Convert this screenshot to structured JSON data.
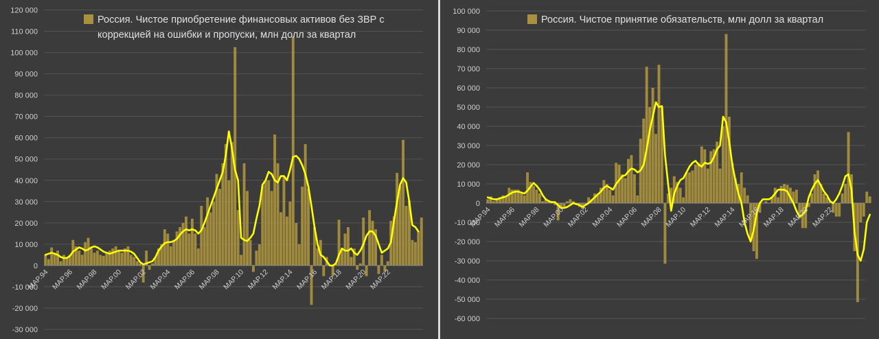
{
  "chart_data": [
    {
      "type": "bar",
      "legend": [
        "Россия. Чистое приобретение финансовых активов без ЗВР с",
        "коррекцией на ошибки и пропуски, млн долл за квартал"
      ],
      "legend_placement": "top",
      "ylim": [
        -30000,
        120000
      ],
      "ystep": 10000,
      "ytick_labels": [
        "-30 000",
        "-20 000",
        "-10 000",
        "0",
        "10 000",
        "20 000",
        "30 000",
        "40 000",
        "50 000",
        "60 000",
        "70 000",
        "80 000",
        "90 000",
        "100 000",
        "110 000",
        "120 000"
      ],
      "xtick_labels": [
        "MAP.94",
        "MAP.96",
        "MAP.98",
        "MAP.00",
        "MAP.02",
        "MAP.04",
        "MAP.06",
        "MAP.08",
        "MAP.10",
        "MAP.12",
        "MAP.14",
        "MAP.16",
        "MAP.18",
        "MAP.20",
        "MAP.22"
      ],
      "x_start_quarter": "1994Q1",
      "grid": true,
      "colors": {
        "bar": "#a8913f",
        "line": "#ffff00",
        "grid": "#555555"
      },
      "values": [
        5000,
        3000,
        8500,
        6000,
        7000,
        2000,
        5000,
        4000,
        5000,
        12000,
        9000,
        7000,
        5000,
        11000,
        13000,
        8000,
        6000,
        7000,
        5000,
        4500,
        6000,
        7000,
        8000,
        9000,
        7000,
        6000,
        8000,
        9000,
        5000,
        4000,
        2000,
        1000,
        -8000,
        7000,
        -2000,
        1000,
        4000,
        8000,
        10000,
        17000,
        15000,
        9000,
        12000,
        16000,
        18000,
        20000,
        23000,
        15000,
        22000,
        15000,
        8000,
        28000,
        18000,
        32000,
        25000,
        30000,
        43000,
        36000,
        48000,
        57000,
        40000,
        58000,
        102500,
        26000,
        5000,
        48000,
        35000,
        12000,
        -3000,
        7000,
        10000,
        37500,
        40000,
        40000,
        35000,
        61500,
        48000,
        25000,
        42000,
        23000,
        30000,
        107500,
        20000,
        10000,
        37000,
        57000,
        36000,
        -18500,
        18000,
        8000,
        12000,
        -5000,
        4000,
        0,
        -5000,
        1000,
        21500,
        8000,
        15000,
        18000,
        4000,
        8000,
        -2000,
        1000,
        22500,
        -5000,
        26000,
        21000,
        17000,
        -4000,
        5000,
        -3000,
        2000,
        21000,
        23000,
        43500,
        37500,
        59000,
        28000,
        30500,
        12000,
        11000,
        16000,
        22500
      ],
      "trend": [
        5000,
        5500,
        6000,
        5500,
        5000,
        4000,
        3500,
        3500,
        4500,
        6500,
        7500,
        8500,
        8000,
        7000,
        7500,
        8500,
        9000,
        8500,
        7500,
        6500,
        6000,
        5500,
        6000,
        6500,
        7000,
        7000,
        7000,
        7000,
        6500,
        5500,
        3500,
        1500,
        500,
        1000,
        1500,
        2000,
        4000,
        7000,
        9000,
        10500,
        11000,
        11000,
        11500,
        12500,
        14500,
        16000,
        17000,
        16500,
        17000,
        16500,
        15000,
        16500,
        20000,
        24000,
        28000,
        32000,
        36000,
        40000,
        44000,
        52000,
        63000,
        55000,
        45000,
        40000,
        13000,
        12000,
        11500,
        13000,
        15000,
        22000,
        28000,
        38000,
        40000,
        44000,
        43000,
        40000,
        39000,
        42000,
        42000,
        40000,
        45000,
        51000,
        51500,
        50000,
        47000,
        43000,
        37000,
        28000,
        18000,
        10000,
        5000,
        4000,
        2000,
        0,
        0,
        1000,
        5000,
        8000,
        7000,
        7000,
        8000,
        6000,
        5000,
        7000,
        10000,
        14000,
        16000,
        16000,
        14000,
        10000,
        6000,
        7000,
        8000,
        11000,
        21000,
        30000,
        38000,
        41000,
        39000,
        30000,
        19000,
        18000,
        16000
      ],
      "n_periods": 124
    },
    {
      "type": "bar",
      "legend": [
        "Россия. Чистое принятие обязательств, млн долл за квартал"
      ],
      "legend_placement": "top",
      "ylim": [
        -60000,
        100000
      ],
      "ystep": 10000,
      "ytick_labels": [
        "-60 000",
        "-50 000",
        "-40 000",
        "-30 000",
        "-20 000",
        "-10 000",
        "0",
        "10 000",
        "20 000",
        "30 000",
        "40 000",
        "50 000",
        "60 000",
        "70 000",
        "80 000",
        "90 000",
        "100 000"
      ],
      "xtick_labels": [
        "MAP.94",
        "MAP.96",
        "MAP.98",
        "MAP.00",
        "MAP.02",
        "MAP.04",
        "MAP.06",
        "MAP.08",
        "MAP.10",
        "MAP.12",
        "MAP.14",
        "MAP.16",
        "MAP.18",
        "MAP.20",
        "MAP.22"
      ],
      "x_start_quarter": "1994Q1",
      "grid": true,
      "colors": {
        "bar": "#a8913f",
        "line": "#ffff00",
        "grid": "#555555"
      },
      "values": [
        2000,
        3500,
        1000,
        2500,
        3000,
        4000,
        3500,
        8000,
        7000,
        7000,
        7000,
        5000,
        4000,
        16000,
        11000,
        9000,
        7000,
        5000,
        1000,
        2000,
        1500,
        1000,
        -1000,
        -9000,
        -3000,
        -2000,
        1000,
        2000,
        1000,
        -1000,
        -2000,
        -3000,
        -1000,
        3000,
        2000,
        5000,
        5000,
        8000,
        12000,
        10000,
        7000,
        4000,
        21000,
        20000,
        15000,
        13000,
        23000,
        25000,
        15000,
        4000,
        33500,
        44000,
        71000,
        50000,
        60000,
        36000,
        72000,
        50000,
        -31500,
        5000,
        8000,
        14000,
        11000,
        8000,
        3000,
        16000,
        16000,
        17000,
        20000,
        21000,
        29500,
        28000,
        18000,
        27000,
        28000,
        32000,
        18000,
        40000,
        88000,
        45000,
        21000,
        13000,
        10000,
        16000,
        8000,
        4000,
        -19500,
        -25000,
        -29000,
        -5000,
        0,
        1000,
        0,
        3000,
        8000,
        3000,
        9000,
        10000,
        9500,
        8000,
        6000,
        7000,
        -8000,
        -13000,
        -13000,
        -2000,
        5000,
        15000,
        17000,
        10000,
        5000,
        3000,
        1000,
        -5000,
        -7000,
        -7000,
        5000,
        10000,
        37000,
        15000,
        -25000,
        -51500,
        -10000,
        -7000,
        6000,
        3500
      ],
      "trend": [
        3000,
        2500,
        2000,
        2000,
        2500,
        3000,
        3500,
        4500,
        5500,
        6000,
        6000,
        5500,
        5000,
        6500,
        8500,
        10500,
        9000,
        7000,
        4000,
        2000,
        1000,
        500,
        500,
        -1000,
        -2500,
        -2500,
        -2000,
        -1000,
        0,
        -500,
        -1000,
        -2000,
        -1000,
        0,
        1500,
        3000,
        4500,
        6000,
        8000,
        9000,
        8000,
        7000,
        10000,
        12000,
        14000,
        14500,
        16500,
        18000,
        17500,
        16000,
        17000,
        20000,
        28000,
        38000,
        45000,
        52500,
        50000,
        50500,
        25000,
        10000,
        -4000,
        5000,
        9000,
        12000,
        13000,
        16000,
        19000,
        21000,
        22000,
        20000,
        19000,
        21000,
        20500,
        21000,
        24000,
        28000,
        30000,
        45000,
        42000,
        32000,
        20000,
        12000,
        5000,
        0,
        -10000,
        -16000,
        -20000,
        -14000,
        -5000,
        0,
        2000,
        2000,
        2000,
        3000,
        5000,
        7000,
        7000,
        7000,
        6000,
        3000,
        0,
        -4000,
        -7000,
        -6000,
        -4000,
        3000,
        7000,
        10000,
        12000,
        9000,
        6000,
        4000,
        1000,
        0,
        2000,
        5000,
        9000,
        14000,
        15000,
        7000,
        -15000,
        -27000,
        -30000,
        -24000,
        -10000,
        -6000
      ],
      "n_periods": 124
    }
  ]
}
